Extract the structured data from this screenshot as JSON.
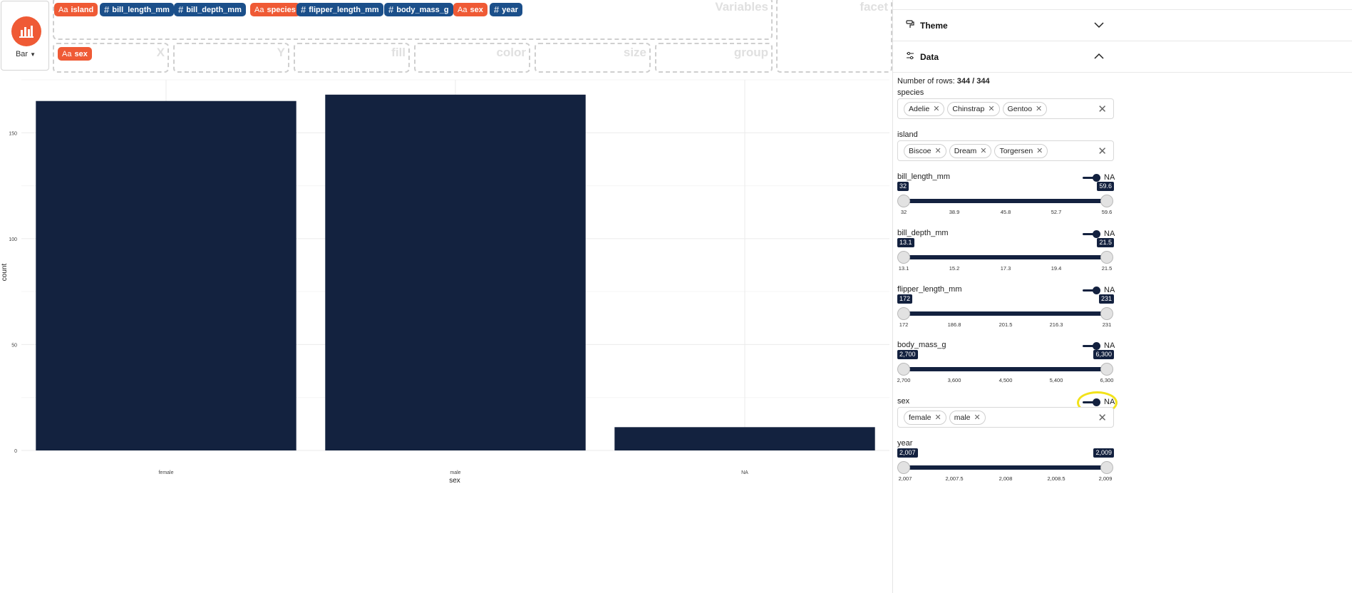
{
  "geom": {
    "label": "Bar",
    "icon": "bar-chart-icon",
    "accent": "#ef5a35"
  },
  "variables": [
    {
      "name": "island",
      "kind": "cat"
    },
    {
      "name": "bill_length_mm",
      "kind": "num"
    },
    {
      "name": "bill_depth_mm",
      "kind": "num"
    },
    {
      "name": "species",
      "kind": "cat"
    },
    {
      "name": "flipper_length_mm",
      "kind": "num"
    },
    {
      "name": "body_mass_g",
      "kind": "num"
    },
    {
      "name": "sex",
      "kind": "cat"
    },
    {
      "name": "year",
      "kind": "num"
    }
  ],
  "zones": {
    "variables": "Variables",
    "facet": "facet",
    "x": "X",
    "y": "Y",
    "fill": "fill",
    "color": "color",
    "size": "size",
    "group": "group"
  },
  "x_mapping": {
    "name": "sex",
    "kind": "cat"
  },
  "colors": {
    "categorical": "#ef5a35",
    "numeric": "#1b4f8a",
    "bar": "#13223f",
    "highlight": "#f2e21a"
  },
  "chart_data": {
    "type": "bar",
    "categories": [
      "female",
      "male",
      "NA"
    ],
    "values": [
      165,
      168,
      11
    ],
    "xlabel": "sex",
    "ylabel": "count",
    "ylim": [
      0,
      175
    ],
    "yticks": [
      0,
      50,
      100,
      150
    ],
    "grid": true
  },
  "sidebar": {
    "theme_label": "Theme",
    "data_label": "Data",
    "rows_prefix": "Number of rows:",
    "rows_value": "344 / 344",
    "na_label": "NA",
    "filters": {
      "species": {
        "label": "species",
        "chips": [
          "Adelie",
          "Chinstrap",
          "Gentoo"
        ]
      },
      "island": {
        "label": "island",
        "chips": [
          "Biscoe",
          "Dream",
          "Torgersen"
        ]
      },
      "sex": {
        "label": "sex",
        "chips": [
          "female",
          "male"
        ]
      },
      "bill_length_mm": {
        "label": "bill_length_mm",
        "min": "32",
        "max": "59.6",
        "ticks": [
          "32",
          "38.9",
          "45.8",
          "52.7",
          "59.6"
        ]
      },
      "bill_depth_mm": {
        "label": "bill_depth_mm",
        "min": "13.1",
        "max": "21.5",
        "ticks": [
          "13.1",
          "15.2",
          "17.3",
          "19.4",
          "21.5"
        ]
      },
      "flipper_length_mm": {
        "label": "flipper_length_mm",
        "min": "172",
        "max": "231",
        "ticks": [
          "172",
          "186.8",
          "201.5",
          "216.3",
          "231"
        ]
      },
      "body_mass_g": {
        "label": "body_mass_g",
        "min": "2,700",
        "max": "6,300",
        "ticks": [
          "2,700",
          "3,600",
          "4,500",
          "5,400",
          "6,300"
        ]
      },
      "year": {
        "label": "year",
        "min": "2,007",
        "max": "2,009",
        "ticks": [
          "2,007",
          "2,007.5",
          "2,008",
          "2,008.5",
          "2,009"
        ]
      }
    }
  }
}
